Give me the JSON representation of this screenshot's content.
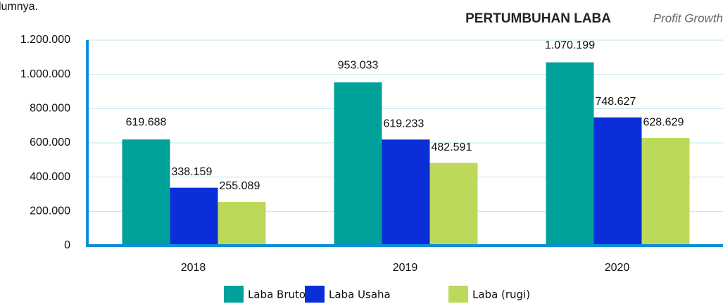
{
  "top_text": "lumnya.",
  "chart_data": {
    "type": "bar",
    "title": "PERTUMBUHAN LABA",
    "subtitle": "Profit Growth",
    "categories": [
      "2018",
      "2019",
      "2020"
    ],
    "series": [
      {
        "name": "Laba Bruto",
        "color": "#00a19a",
        "values": [
          619688,
          953033,
          1070199
        ],
        "value_labels": [
          "619.688",
          "953.033",
          "1.070.199"
        ]
      },
      {
        "name": "Laba Usaha",
        "color": "#0a2fd8",
        "values": [
          338159,
          619233,
          748627
        ],
        "value_labels": [
          "338.159",
          "619.233",
          "748.627"
        ]
      },
      {
        "name": "Laba (rugi)",
        "color": "#bcd95a",
        "values": [
          255089,
          482591,
          628629
        ],
        "value_labels": [
          "255.089",
          "482.591",
          "628.629"
        ]
      }
    ],
    "ylim": [
      0,
      1200000
    ],
    "yticks": [
      0,
      {
        "value": 200000,
        "label": "200.000"
      },
      {
        "value": 400000,
        "label": "400.000"
      },
      {
        "value": 600000,
        "label": "600.000"
      },
      {
        "value": 800000,
        "label": "800.000"
      },
      {
        "value": 1000000,
        "label": "1.000.000"
      },
      {
        "value": 1200000,
        "label": "1.200.000"
      }
    ],
    "grid": true,
    "legend": "bottom"
  }
}
